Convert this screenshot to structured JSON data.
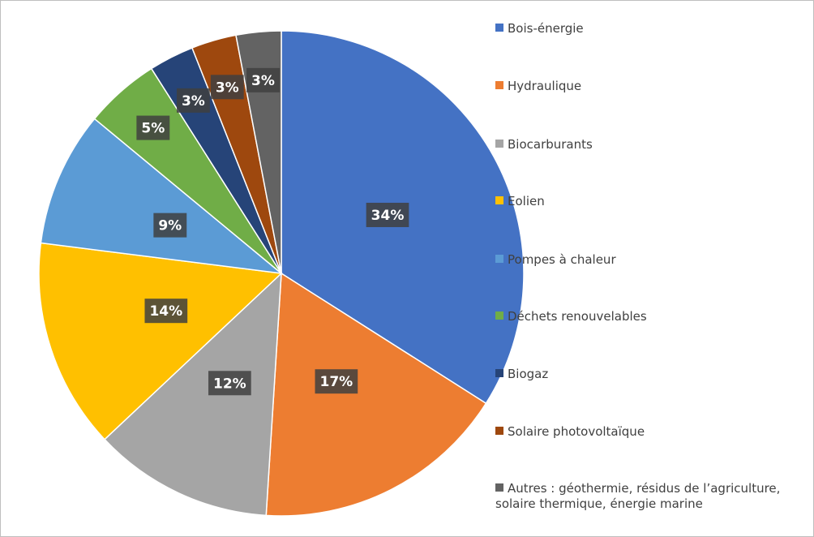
{
  "chart_data": {
    "type": "pie",
    "categories": [
      "Bois-énergie",
      "Hydraulique",
      "Biocarburants",
      "Eolien",
      "Pompes à chaleur",
      "Déchets renouvelables",
      "Biogaz",
      "Solaire photovoltaïque",
      "Autres : géothermie, résidus de l’agriculture, solaire thermique, énergie marine"
    ],
    "values": [
      34,
      17,
      12,
      14,
      9,
      5,
      3,
      3,
      3
    ],
    "value_labels": [
      "34%",
      "17%",
      "12%",
      "14%",
      "9%",
      "5%",
      "3%",
      "3%",
      "3%"
    ],
    "colors": [
      "#4472c4",
      "#ed7d31",
      "#a5a5a5",
      "#ffc000",
      "#5b9bd5",
      "#70ad47",
      "#264478",
      "#9e480e",
      "#636363"
    ],
    "legend": "right"
  }
}
